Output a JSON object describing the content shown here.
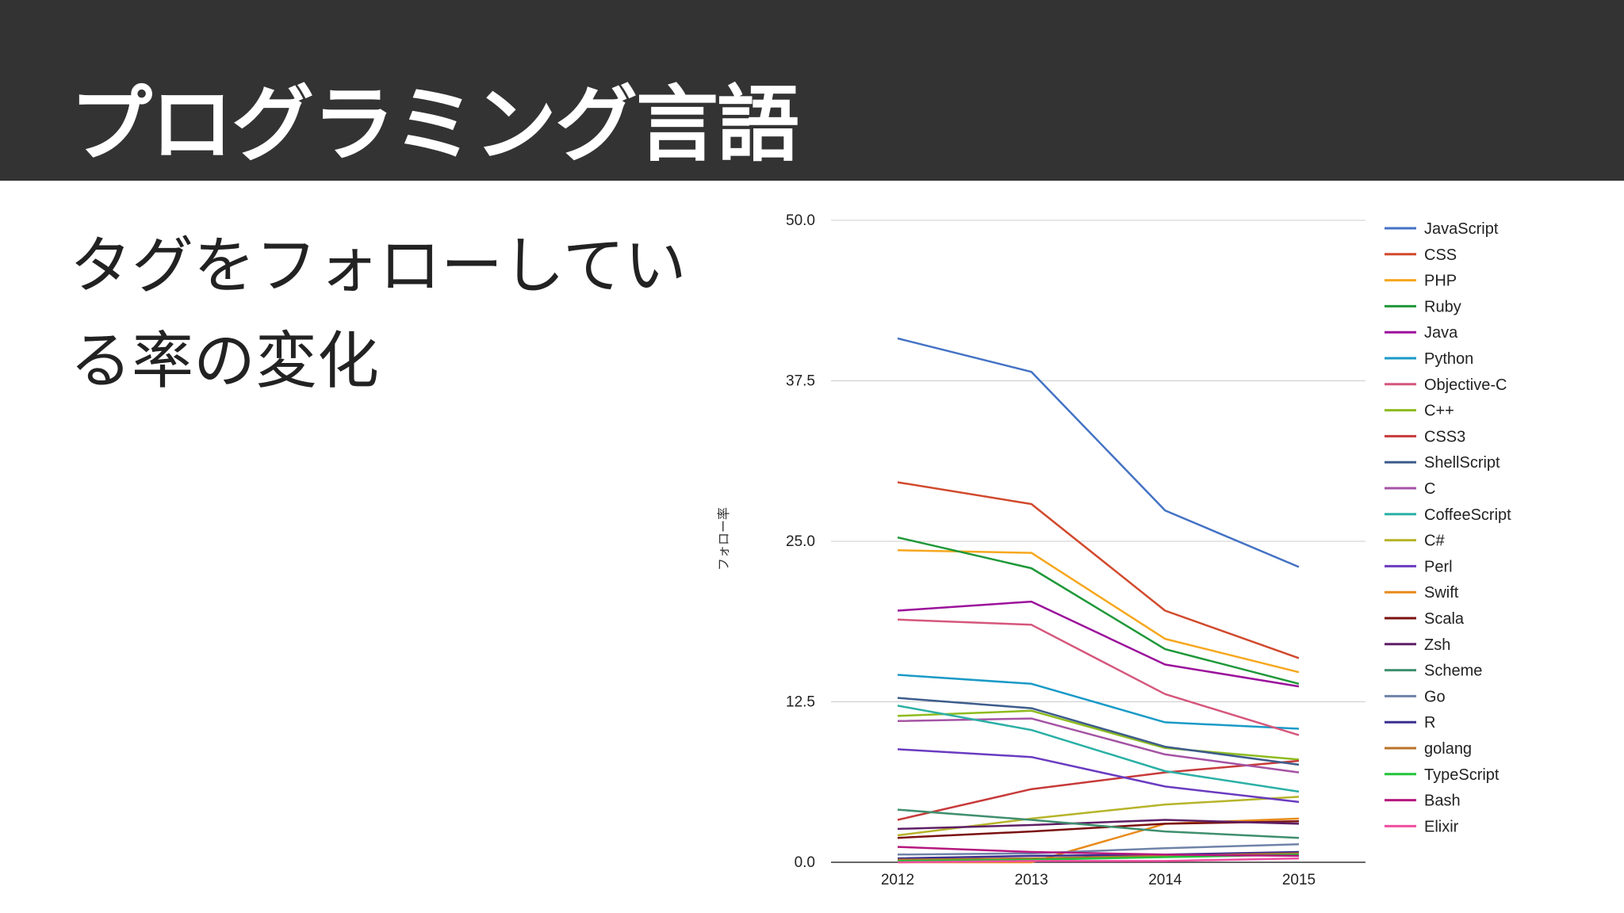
{
  "slide": {
    "title": "プログラミング言語",
    "subtitle_lines": [
      "タグをフォローしてい",
      "る率の変化"
    ]
  },
  "chart_data": {
    "type": "line",
    "x": [
      "2012",
      "2013",
      "2014",
      "2015"
    ],
    "ylabel": "フォロー率",
    "yticks": [
      "0.0",
      "12.5",
      "25.0",
      "37.5",
      "50.0"
    ],
    "ylim": [
      0,
      50
    ],
    "grid": true,
    "legend": "right",
    "series": [
      {
        "name": "JavaScript",
        "color": "#4472C4",
        "values": [
          40.8,
          38.2,
          27.4,
          23.0
        ]
      },
      {
        "name": "CSS",
        "color": "#D1492D",
        "values": [
          29.6,
          27.9,
          19.6,
          15.9
        ]
      },
      {
        "name": "PHP",
        "color": "#F6A71E",
        "values": [
          24.3,
          24.1,
          17.4,
          14.8
        ]
      },
      {
        "name": "Ruby",
        "color": "#1F9838",
        "values": [
          25.3,
          22.9,
          16.6,
          13.9
        ]
      },
      {
        "name": "Java",
        "color": "#9B119B",
        "values": [
          19.6,
          20.3,
          15.4,
          13.7
        ]
      },
      {
        "name": "Python",
        "color": "#1A9AC7",
        "values": [
          14.6,
          13.9,
          10.9,
          10.4
        ]
      },
      {
        "name": "Objective-C",
        "color": "#D5577C",
        "values": [
          18.9,
          18.5,
          13.1,
          9.9
        ]
      },
      {
        "name": "C++",
        "color": "#8EBB1E",
        "values": [
          11.4,
          11.8,
          8.9,
          8.0
        ]
      },
      {
        "name": "CSS3",
        "color": "#C73A3A",
        "values": [
          3.3,
          5.7,
          7.0,
          7.9
        ]
      },
      {
        "name": "ShellScript",
        "color": "#3D5C8C",
        "values": [
          12.8,
          12.0,
          9.0,
          7.6
        ]
      },
      {
        "name": "C",
        "color": "#A453A4",
        "values": [
          11.0,
          11.2,
          8.4,
          7.0
        ]
      },
      {
        "name": "CoffeeScript",
        "color": "#2BB0A6",
        "values": [
          12.2,
          10.3,
          7.1,
          5.5
        ]
      },
      {
        "name": "C#",
        "color": "#B6B42A",
        "values": [
          2.1,
          3.4,
          4.5,
          5.1
        ]
      },
      {
        "name": "Perl",
        "color": "#6A3BC0",
        "values": [
          8.8,
          8.2,
          5.9,
          4.7
        ]
      },
      {
        "name": "Swift",
        "color": "#E88A1A",
        "values": [
          0.0,
          0.0,
          3.0,
          3.4
        ]
      },
      {
        "name": "Scala",
        "color": "#7A1010",
        "values": [
          1.9,
          2.4,
          3.0,
          3.2
        ]
      },
      {
        "name": "Zsh",
        "color": "#5E1F66",
        "values": [
          2.6,
          2.9,
          3.3,
          3.0
        ]
      },
      {
        "name": "Scheme",
        "color": "#3F8F6E",
        "values": [
          4.1,
          3.3,
          2.4,
          1.9
        ]
      },
      {
        "name": "Go",
        "color": "#6F83A8",
        "values": [
          0.6,
          0.7,
          1.1,
          1.4
        ]
      },
      {
        "name": "R",
        "color": "#3A2F8F",
        "values": [
          0.3,
          0.5,
          0.6,
          0.8
        ]
      },
      {
        "name": "golang",
        "color": "#B8732A",
        "values": [
          0.2,
          0.3,
          0.5,
          0.7
        ]
      },
      {
        "name": "TypeScript",
        "color": "#22C43A",
        "values": [
          0.1,
          0.2,
          0.4,
          0.6
        ]
      },
      {
        "name": "Bash",
        "color": "#B5187E",
        "values": [
          1.2,
          0.8,
          0.6,
          0.5
        ]
      },
      {
        "name": "Elixir",
        "color": "#F04FA0",
        "values": [
          0.0,
          0.1,
          0.1,
          0.3
        ]
      }
    ]
  }
}
